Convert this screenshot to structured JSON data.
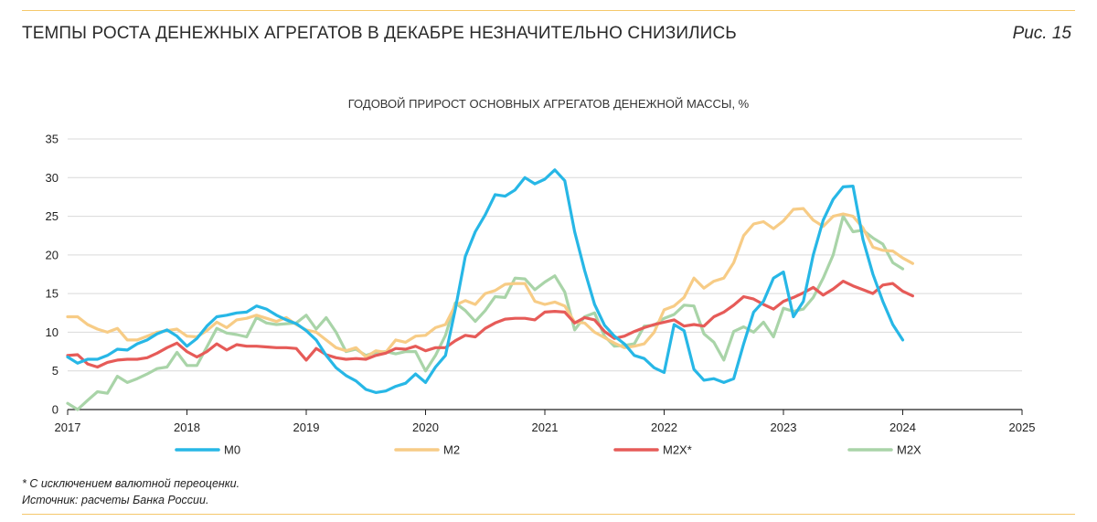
{
  "header": {
    "title": "ТЕМПЫ РОСТА ДЕНЕЖНЫХ АГРЕГАТОВ В ДЕКАБРЕ НЕЗНАЧИТЕЛЬНО СНИЗИЛИСЬ",
    "figure_number": "Рис. 15"
  },
  "footer": {
    "footnote": "* С исключением валютной переоценки.",
    "source": "Источник: расчеты Банка России."
  },
  "colors": {
    "M0": "#27b7e6",
    "M2": "#f7cc86",
    "M2X*": "#e65b58",
    "M2X": "#a9d4a8",
    "grid": "#d9d9d9",
    "rule": "#f5c86b"
  },
  "chart_data": {
    "type": "line",
    "title": "ГОДОВОЙ ПРИРОСТ ОСНОВНЫХ АГРЕГАТОВ ДЕНЕЖНОЙ МАССЫ, %",
    "xlabel": "",
    "ylabel": "",
    "xlim": [
      2017,
      2025
    ],
    "ylim": [
      0,
      35
    ],
    "xticks": [
      "2017",
      "2018",
      "2019",
      "2020",
      "2021",
      "2022",
      "2023",
      "2024",
      "2025"
    ],
    "yticks": [
      "0",
      "5",
      "10",
      "15",
      "20",
      "25",
      "30",
      "35"
    ],
    "grid": true,
    "legend": "bottom",
    "x_start": 2017.0,
    "x_step_months": 1,
    "series": [
      {
        "name": "M0",
        "values": [
          6.8,
          6.0,
          6.5,
          6.5,
          7.0,
          7.8,
          7.7,
          8.5,
          9.0,
          9.8,
          10.3,
          9.5,
          8.2,
          9.2,
          10.8,
          12.0,
          12.2,
          12.5,
          12.6,
          13.4,
          13.0,
          12.2,
          11.6,
          11.1,
          10.2,
          9.0,
          7.0,
          5.4,
          4.4,
          3.7,
          2.6,
          2.2,
          2.4,
          3.0,
          3.4,
          4.6,
          3.5,
          5.5,
          7.0,
          13.0,
          19.8,
          23.0,
          25.2,
          27.8,
          27.6,
          28.4,
          30.0,
          29.2,
          29.8,
          31.0,
          29.6,
          23.0,
          18.0,
          13.6,
          10.9,
          9.5,
          8.5,
          7.0,
          6.6,
          5.4,
          4.8,
          11.0,
          10.2,
          5.2,
          3.8,
          4.0,
          3.5,
          4.0,
          8.5,
          12.6,
          14.0,
          17.0,
          17.8,
          12.0,
          14.0,
          20.0,
          24.5,
          27.2,
          28.8,
          28.9,
          22.0,
          17.5,
          14.0,
          11.0,
          9.0
        ]
      },
      {
        "name": "M2",
        "values": [
          12.0,
          12.0,
          11.0,
          10.4,
          10.0,
          10.5,
          9.0,
          9.0,
          9.5,
          10.0,
          10.2,
          10.4,
          9.5,
          9.4,
          10.2,
          11.3,
          10.6,
          11.6,
          11.8,
          12.2,
          11.8,
          11.4,
          11.9,
          11.0,
          10.3,
          10.0,
          9.0,
          8.0,
          7.6,
          8.0,
          6.8,
          7.6,
          7.4,
          9.0,
          8.7,
          9.5,
          9.6,
          10.6,
          11.0,
          13.5,
          14.1,
          13.6,
          15.0,
          15.4,
          16.2,
          16.3,
          16.3,
          14.0,
          13.6,
          13.9,
          13.4,
          11.3,
          11.2,
          10.0,
          9.3,
          8.6,
          8.0,
          8.2,
          8.5,
          10.0,
          12.9,
          13.4,
          14.5,
          17.0,
          15.7,
          16.6,
          17.0,
          19.0,
          22.5,
          24.0,
          24.3,
          23.4,
          24.4,
          25.9,
          26.0,
          24.5,
          23.7,
          25.0,
          25.3,
          25.0,
          23.5,
          21.0,
          20.6,
          20.5,
          19.6,
          18.9
        ]
      },
      {
        "name": "M2X*",
        "values": [
          7.0,
          7.1,
          5.9,
          5.5,
          6.1,
          6.4,
          6.5,
          6.5,
          6.7,
          7.3,
          8.0,
          8.6,
          7.5,
          6.8,
          7.5,
          8.5,
          7.7,
          8.4,
          8.2,
          8.2,
          8.1,
          8.0,
          8.0,
          7.9,
          6.4,
          7.9,
          7.1,
          6.7,
          6.5,
          6.6,
          6.5,
          7.0,
          7.3,
          7.9,
          7.8,
          8.2,
          7.6,
          8.0,
          8.0,
          8.9,
          9.6,
          9.4,
          10.5,
          11.2,
          11.7,
          11.8,
          11.8,
          11.6,
          12.6,
          12.7,
          12.6,
          11.2,
          11.9,
          11.6,
          10.1,
          9.2,
          9.5,
          10.1,
          10.6,
          11.0,
          11.3,
          11.6,
          10.8,
          11.0,
          10.8,
          12.0,
          12.6,
          13.5,
          14.6,
          14.3,
          13.6,
          13.0,
          14.0,
          14.5,
          15.1,
          15.8,
          14.8,
          15.6,
          16.6,
          16.0,
          15.5,
          15.0,
          16.1,
          16.3,
          15.3,
          14.7
        ]
      },
      {
        "name": "M2X",
        "values": [
          0.8,
          0.0,
          1.2,
          2.3,
          2.1,
          4.3,
          3.5,
          4.0,
          4.6,
          5.3,
          5.5,
          7.4,
          5.7,
          5.7,
          8.1,
          10.5,
          9.9,
          9.7,
          9.4,
          11.9,
          11.2,
          11.0,
          11.1,
          11.2,
          12.2,
          10.4,
          11.9,
          10.0,
          7.5,
          7.8,
          7.0,
          7.4,
          7.5,
          7.2,
          7.5,
          7.5,
          5.0,
          7.0,
          9.6,
          13.8,
          12.8,
          11.4,
          12.8,
          14.6,
          14.5,
          17.0,
          16.9,
          15.5,
          16.5,
          17.3,
          15.2,
          10.3,
          12.0,
          12.5,
          9.5,
          8.2,
          8.3,
          8.5,
          10.8,
          10.9,
          11.8,
          12.3,
          13.5,
          13.4,
          9.8,
          8.7,
          6.4,
          10.1,
          10.7,
          10.0,
          11.3,
          9.4,
          13.1,
          12.7,
          13.0,
          14.5,
          17.0,
          20.0,
          25.0,
          23.0,
          23.2,
          22.2,
          21.4,
          19.0,
          18.2
        ]
      }
    ]
  }
}
